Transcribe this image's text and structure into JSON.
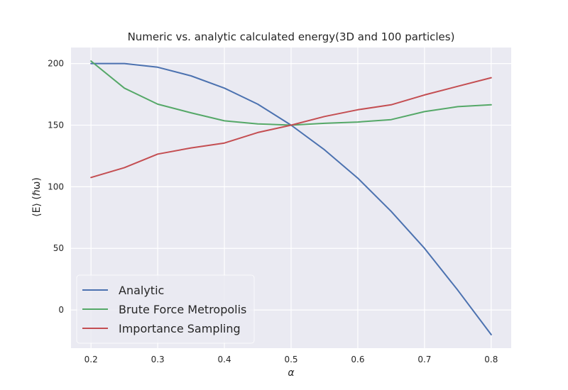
{
  "chart_data": {
    "type": "line",
    "title": "Numeric vs. analytic calculated energy(3D and 100 particles)",
    "xlabel": "α",
    "ylabel": "⟨E⟩ (ℏω)",
    "xlim": [
      0.17,
      0.83
    ],
    "ylim": [
      -31,
      213
    ],
    "xticks": [
      0.2,
      0.3,
      0.4,
      0.5,
      0.6,
      0.7,
      0.8
    ],
    "xtick_labels": [
      "0.2",
      "0.3",
      "0.4",
      "0.5",
      "0.6",
      "0.7",
      "0.8"
    ],
    "yticks": [
      0,
      50,
      100,
      150,
      200
    ],
    "ytick_labels": [
      "0",
      "50",
      "100",
      "150",
      "200"
    ],
    "grid": true,
    "legend_position": "lower-left",
    "x": [
      0.2,
      0.25,
      0.3,
      0.35,
      0.4,
      0.45,
      0.5,
      0.55,
      0.6,
      0.65,
      0.7,
      0.75,
      0.8
    ],
    "series": [
      {
        "name": "Analytic",
        "color": "#4c72b0",
        "values": [
          200,
          200,
          197,
          190,
          180,
          167,
          150,
          130,
          107,
          80,
          50,
          16,
          -20
        ]
      },
      {
        "name": "Brute Force Metropolis",
        "color": "#55a868",
        "values": [
          202,
          180,
          167,
          160,
          153.5,
          151,
          150,
          151.5,
          152.5,
          154.5,
          161,
          165,
          166.5
        ]
      },
      {
        "name": "Importance Sampling",
        "color": "#c44e52",
        "values": [
          107.5,
          115.5,
          126.5,
          131.5,
          135.5,
          144,
          150,
          157,
          162.5,
          166.5,
          174.5,
          181.5,
          188.5
        ]
      }
    ]
  }
}
